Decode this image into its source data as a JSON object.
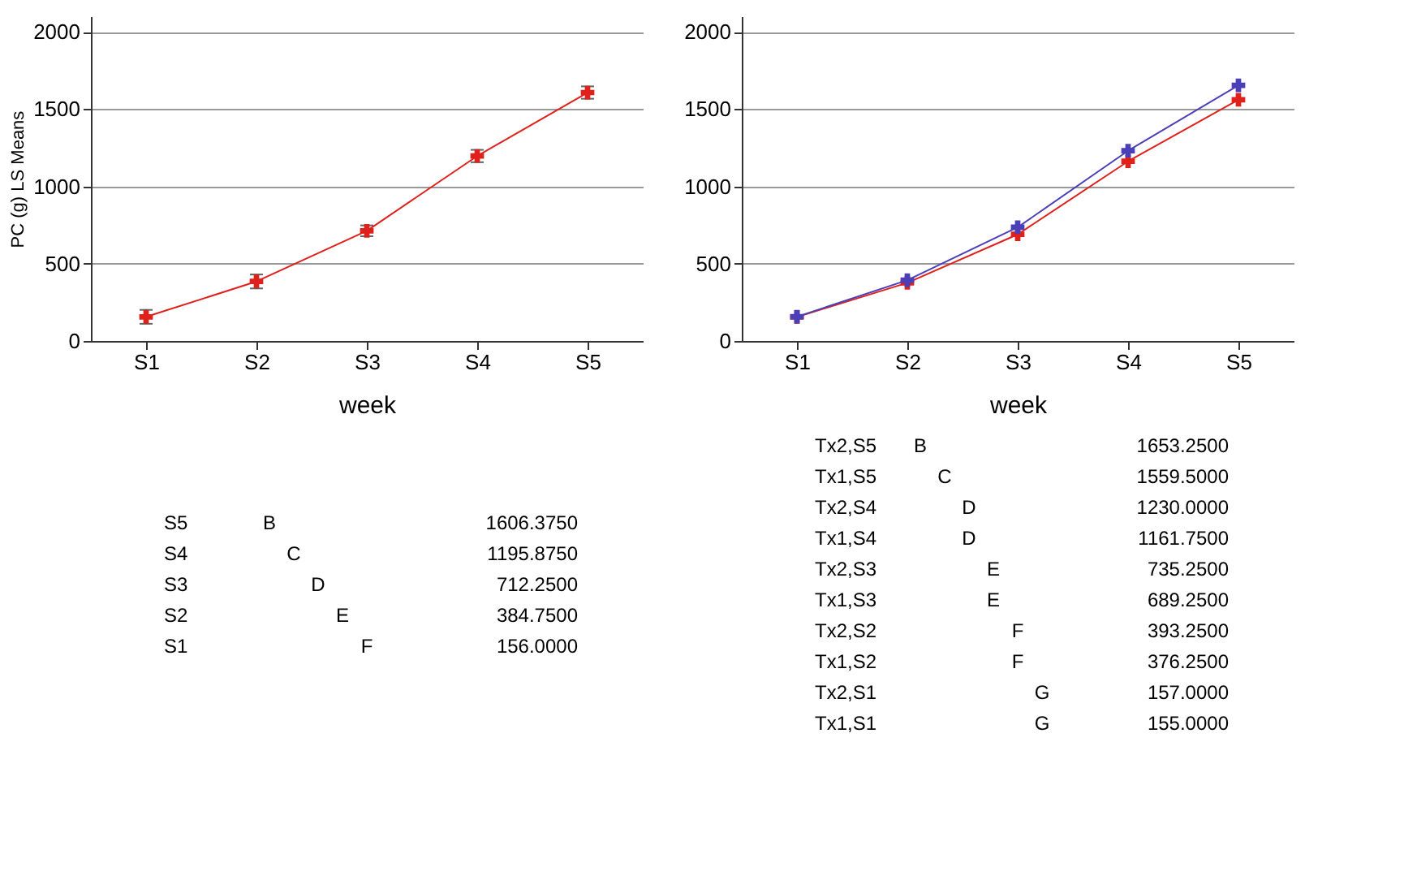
{
  "chart_data": [
    {
      "type": "line",
      "xlabel": "week",
      "ylabel": "PC (g) LS Means",
      "categories": [
        "S1",
        "S2",
        "S3",
        "S4",
        "S5"
      ],
      "ylim": [
        0,
        2100
      ],
      "yticks": [
        0,
        500,
        1000,
        1500,
        2000
      ],
      "grid": "y",
      "marker": "cross",
      "line_style": "solid",
      "legend": false,
      "series": [
        {
          "color": "#e0201b",
          "values": [
            156.0,
            384.75,
            712.25,
            1195.875,
            1606.375
          ],
          "errors": [
            45,
            45,
            35,
            40,
            40
          ]
        }
      ],
      "annotations": [
        "S5",
        "B",
        "1606.3750",
        "S4",
        "C",
        "1195.8750",
        "S3",
        "D",
        "712.2500",
        "S2",
        "E",
        "384.7500",
        "S1",
        "F",
        "156.0000"
      ]
    },
    {
      "type": "line",
      "xlabel": "week",
      "categories": [
        "S1",
        "S2",
        "S3",
        "S4",
        "S5"
      ],
      "ylim": [
        0,
        2100
      ],
      "yticks": [
        0,
        500,
        1000,
        1500,
        2000
      ],
      "grid": "y",
      "marker": "cross",
      "line_style": "solid",
      "legend": false,
      "series": [
        {
          "color": "#e0201b",
          "values": [
            155.0,
            376.25,
            689.25,
            1161.75,
            1559.5
          ]
        },
        {
          "color": "#4a3fb8",
          "values": [
            157.0,
            393.25,
            735.25,
            1230.0,
            1653.25
          ]
        }
      ],
      "annotations": [
        "Tx2,S5",
        "B",
        "1653.2500",
        "Tx1,S5",
        "C",
        "1559.5000",
        "Tx2,S4",
        "D",
        "1230.0000",
        "Tx1,S4",
        "D",
        "1161.7500",
        "Tx2,S3",
        "E",
        "735.2500",
        "Tx1,S3",
        "E",
        "689.2500",
        "Tx2,S2",
        "F",
        "393.2500",
        "Tx1,S2",
        "F",
        "376.2500",
        "Tx2,S1",
        "G",
        "157.0000",
        "Tx1,S1",
        "G",
        "155.0000"
      ]
    }
  ]
}
